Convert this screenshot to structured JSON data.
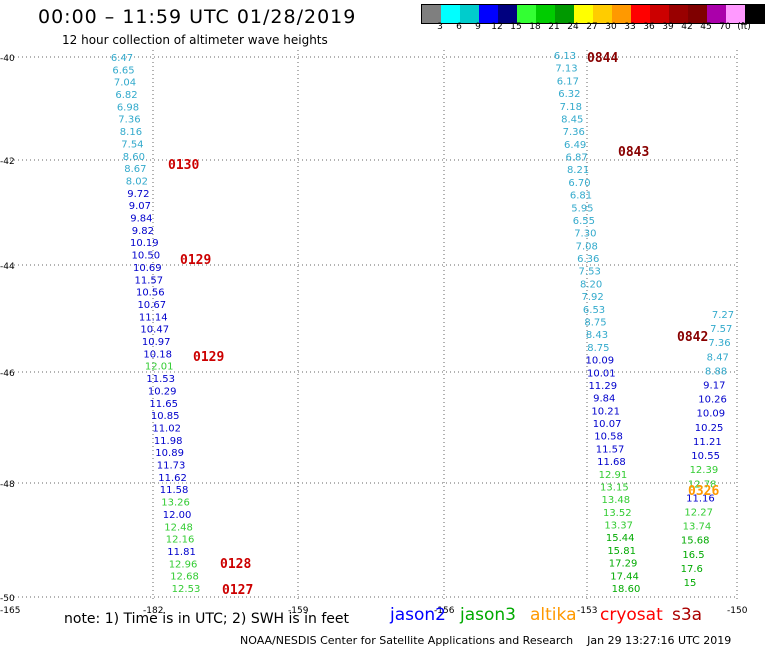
{
  "header": {
    "title": "00:00 – 11:59 UTC 01/28/2019",
    "subtitle": "12 hour collection of altimeter wave heights"
  },
  "legend": {
    "colors": [
      "#7f7f7f",
      "#00ffff",
      "#00cccc",
      "#0000ff",
      "#00007f",
      "#33ff33",
      "#00cc00",
      "#009900",
      "#ffff00",
      "#ffcc00",
      "#ff9900",
      "#ff0000",
      "#cc0000",
      "#990000",
      "#7f0000",
      "#aa00aa",
      "#ff99ff",
      "#000000"
    ],
    "ticks": [
      "3",
      "6",
      "9",
      "12",
      "15",
      "18",
      "21",
      "24",
      "27",
      "30",
      "33",
      "36",
      "39",
      "42",
      "45",
      "70",
      "(ft)"
    ]
  },
  "axes": {
    "lat_labels": [
      "-40",
      "-42",
      "-44",
      "-46",
      "-48",
      "-50"
    ],
    "lon_labels": [
      "-165",
      "-182",
      "-159",
      "-156",
      "-153",
      "-150"
    ]
  },
  "tracks": [
    {
      "id": "west",
      "points": [
        [
          "6.47",
          "#33aacc"
        ],
        [
          "6.65",
          "#33aacc"
        ],
        [
          "7.04",
          "#33aacc"
        ],
        [
          "6.82",
          "#33aacc"
        ],
        [
          "6.98",
          "#33aacc"
        ],
        [
          "7.36",
          "#33aacc"
        ],
        [
          "8.16",
          "#33aacc"
        ],
        [
          "7.54",
          "#33aacc"
        ],
        [
          "8.60",
          "#33aacc"
        ],
        [
          "8.67",
          "#33aacc"
        ],
        [
          "8.02",
          "#33aacc"
        ],
        [
          "9.72",
          "#0000cc"
        ],
        [
          "9.07",
          "#0000cc"
        ],
        [
          "9.84",
          "#0000cc"
        ],
        [
          "9.82",
          "#0000cc"
        ],
        [
          "10.19",
          "#0000cc"
        ],
        [
          "10.50",
          "#0000cc"
        ],
        [
          "10.69",
          "#0000cc"
        ],
        [
          "11.57",
          "#0000cc"
        ],
        [
          "10.56",
          "#0000cc"
        ],
        [
          "10.67",
          "#0000cc"
        ],
        [
          "11.14",
          "#0000cc"
        ],
        [
          "10.47",
          "#0000cc"
        ],
        [
          "10.97",
          "#0000cc"
        ],
        [
          "10.18",
          "#0000cc"
        ],
        [
          "12.01",
          "#33cc33"
        ],
        [
          "11.53",
          "#0000cc"
        ],
        [
          "10.29",
          "#0000cc"
        ],
        [
          "11.65",
          "#0000cc"
        ],
        [
          "10.85",
          "#0000cc"
        ],
        [
          "11.02",
          "#0000cc"
        ],
        [
          "11.98",
          "#0000cc"
        ],
        [
          "10.89",
          "#0000cc"
        ],
        [
          "11.73",
          "#0000cc"
        ],
        [
          "11.62",
          "#0000cc"
        ],
        [
          "11.58",
          "#0000cc"
        ],
        [
          "13.26",
          "#33cc33"
        ],
        [
          "12.00",
          "#0000cc"
        ],
        [
          "12.48",
          "#33cc33"
        ],
        [
          "12.16",
          "#33cc33"
        ],
        [
          "11.81",
          "#0000cc"
        ],
        [
          "12.96",
          "#33cc33"
        ],
        [
          "12.68",
          "#33cc33"
        ],
        [
          "12.53",
          "#33cc33"
        ]
      ]
    },
    {
      "id": "east",
      "points": [
        [
          "6.13",
          "#33aacc"
        ],
        [
          "7.13",
          "#33aacc"
        ],
        [
          "6.17",
          "#33aacc"
        ],
        [
          "6.32",
          "#33aacc"
        ],
        [
          "7.18",
          "#33aacc"
        ],
        [
          "8.45",
          "#33aacc"
        ],
        [
          "7.36",
          "#33aacc"
        ],
        [
          "6.49",
          "#33aacc"
        ],
        [
          "6.87",
          "#33aacc"
        ],
        [
          "8.21",
          "#33aacc"
        ],
        [
          "6.70",
          "#33aacc"
        ],
        [
          "6.81",
          "#33aacc"
        ],
        [
          "5.95",
          "#33aacc"
        ],
        [
          "6.55",
          "#33aacc"
        ],
        [
          "7.30",
          "#33aacc"
        ],
        [
          "7.08",
          "#33aacc"
        ],
        [
          "6.36",
          "#33aacc"
        ],
        [
          "7.53",
          "#33aacc"
        ],
        [
          "8.20",
          "#33aacc"
        ],
        [
          "7.92",
          "#33aacc"
        ],
        [
          "6.53",
          "#33aacc"
        ],
        [
          "8.75",
          "#33aacc"
        ],
        [
          "8.43",
          "#33aacc"
        ],
        [
          "8.75",
          "#33aacc"
        ],
        [
          "10.09",
          "#0000cc"
        ],
        [
          "10.01",
          "#0000cc"
        ],
        [
          "11.29",
          "#0000cc"
        ],
        [
          "9.84",
          "#0000cc"
        ],
        [
          "10.21",
          "#0000cc"
        ],
        [
          "10.07",
          "#0000cc"
        ],
        [
          "10.58",
          "#0000cc"
        ],
        [
          "11.57",
          "#0000cc"
        ],
        [
          "11.68",
          "#0000cc"
        ],
        [
          "12.91",
          "#33cc33"
        ],
        [
          "13.15",
          "#33cc33"
        ],
        [
          "13.48",
          "#33cc33"
        ],
        [
          "13.52",
          "#33cc33"
        ],
        [
          "13.37",
          "#33cc33"
        ],
        [
          "15.44",
          "#00aa00"
        ],
        [
          "15.81",
          "#00aa00"
        ],
        [
          "17.29",
          "#00aa00"
        ],
        [
          "17.44",
          "#00aa00"
        ],
        [
          "18.60",
          "#00aa00"
        ]
      ]
    },
    {
      "id": "east2",
      "points": [
        [
          "7.27",
          "#33aacc"
        ],
        [
          "7.57",
          "#33aacc"
        ],
        [
          "7.36",
          "#33aacc"
        ],
        [
          "8.47",
          "#33aacc"
        ],
        [
          "8.88",
          "#33aacc"
        ],
        [
          "9.17",
          "#0000cc"
        ],
        [
          "10.26",
          "#0000cc"
        ],
        [
          "10.09",
          "#0000cc"
        ],
        [
          "10.25",
          "#0000cc"
        ],
        [
          "11.21",
          "#0000cc"
        ],
        [
          "10.55",
          "#0000cc"
        ],
        [
          "12.39",
          "#33cc33"
        ],
        [
          "12.78",
          "#33cc33"
        ],
        [
          "11.16",
          "#0000cc"
        ],
        [
          "12.27",
          "#33cc33"
        ],
        [
          "13.74",
          "#33cc33"
        ],
        [
          "15.68",
          "#00aa00"
        ],
        [
          "16.5",
          "#00aa00"
        ],
        [
          "17.6",
          "#00aa00"
        ],
        [
          "15",
          "#00aa00"
        ]
      ]
    }
  ],
  "time_labels": [
    {
      "text": "0130",
      "color": "#cc0000"
    },
    {
      "text": "0129",
      "color": "#cc0000"
    },
    {
      "text": "0129",
      "color": "#cc0000"
    },
    {
      "text": "0128",
      "color": "#cc0000"
    },
    {
      "text": "0127",
      "color": "#cc0000"
    },
    {
      "text": "0844",
      "color": "#880000"
    },
    {
      "text": "0843",
      "color": "#880000"
    },
    {
      "text": "0842",
      "color": "#880000"
    },
    {
      "text": "0326",
      "color": "#ff9900"
    }
  ],
  "footer": {
    "note": "note: 1) Time is in UTC; 2) SWH is in feet",
    "satellites": [
      {
        "name": "jason2",
        "color": "#0000ff"
      },
      {
        "name": "jason3",
        "color": "#00aa00"
      },
      {
        "name": "altika",
        "color": "#ff9900"
      },
      {
        "name": "cryosat",
        "color": "#ff0000"
      },
      {
        "name": "s3a",
        "color": "#aa0000"
      }
    ],
    "credit": "NOAA/NESDIS Center for Satellite Applications and Research    Jan 29 13:27:16 UTC 2019"
  }
}
